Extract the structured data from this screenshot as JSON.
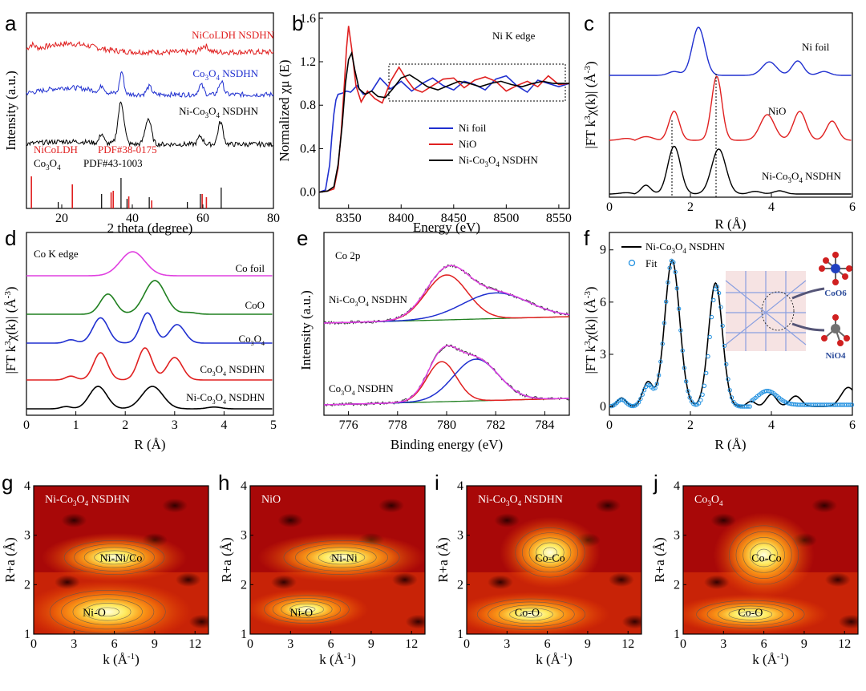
{
  "chart_data": [
    {
      "panel": "a",
      "type": "line",
      "xlabel": "2 theta (degree)",
      "ylabel": "Intensity (a.u.)",
      "xlim": [
        10,
        80
      ],
      "xticks": [
        20,
        40,
        60,
        80
      ],
      "series": [
        {
          "name": "NiCoLDH NSDHN",
          "color": "#e02020"
        },
        {
          "name": "Co3O4 NSDHN",
          "color": "#2030d0"
        },
        {
          "name": "Ni-Co3O4 NSDHN",
          "color": "#000000"
        }
      ],
      "references": [
        {
          "label": "NiCoLDH",
          "pdf": "PDF#38-0175",
          "color": "#e02020",
          "peaks": [
            11.4,
            23,
            34,
            34.6,
            39,
            45.5,
            59.8,
            61
          ]
        },
        {
          "label": "Co3O4",
          "pdf": "PDF#43-1003",
          "color": "#000000",
          "peaks": [
            19,
            31.3,
            36.8,
            38.5,
            44.8,
            55.6,
            59.3,
            65.2
          ]
        }
      ]
    },
    {
      "panel": "b",
      "type": "line",
      "title": "Ni K edge",
      "xlabel": "Energy (eV)",
      "ylabel": "Normalized χμ (E)",
      "xlim": [
        8322,
        8560
      ],
      "ylim": [
        -0.15,
        1.65
      ],
      "xticks": [
        8350,
        8400,
        8450,
        8500,
        8550
      ],
      "yticks": [
        "0.0",
        "0.4",
        "0.8",
        "1.2",
        "1.6"
      ],
      "series": [
        {
          "name": "Ni foil",
          "color": "#2030d0",
          "x": [
            8322,
            8328,
            8332,
            8334,
            8336,
            8338,
            8340,
            8344,
            8348,
            8352,
            8358,
            8364,
            8372,
            8380,
            8390,
            8400,
            8410,
            8420,
            8430,
            8440,
            8450,
            8460,
            8470,
            8480,
            8490,
            8500,
            8510,
            8520,
            8530,
            8540,
            8550,
            8560
          ],
          "y": [
            0.0,
            0.02,
            0.25,
            0.5,
            0.72,
            0.85,
            0.9,
            0.91,
            0.93,
            0.92,
            0.98,
            0.9,
            0.93,
            1.05,
            0.95,
            1.02,
            0.93,
            1.0,
            1.05,
            0.98,
            0.94,
            1.02,
            0.99,
            0.94,
            1.04,
            1.07,
            0.98,
            0.92,
            1.03,
            1.0,
            0.97,
            1.0
          ]
        },
        {
          "name": "NiO",
          "color": "#e02020",
          "x": [
            8322,
            8330,
            8336,
            8340,
            8343,
            8346,
            8348,
            8350,
            8353,
            8357,
            8362,
            8368,
            8375,
            8382,
            8390,
            8398,
            8405,
            8412,
            8420,
            8430,
            8440,
            8450,
            8460,
            8470,
            8480,
            8490,
            8500,
            8510,
            8520,
            8530,
            8540,
            8550,
            8560
          ],
          "y": [
            0.0,
            0.01,
            0.03,
            0.22,
            0.55,
            1.0,
            1.32,
            1.53,
            1.32,
            0.98,
            0.83,
            0.93,
            0.86,
            0.82,
            1.02,
            1.15,
            1.04,
            0.95,
            0.92,
            0.98,
            1.04,
            1.05,
            0.96,
            1.03,
            1.06,
            1.02,
            0.93,
            0.98,
            1.02,
            0.97,
            1.07,
            0.99,
            1.0
          ]
        },
        {
          "name": "Ni-Co3O4 NSDHN",
          "color": "#000000",
          "x": [
            8322,
            8330,
            8336,
            8340,
            8344,
            8347,
            8350,
            8353,
            8356,
            8360,
            8366,
            8372,
            8378,
            8385,
            8392,
            8400,
            8408,
            8416,
            8425,
            8435,
            8445,
            8455,
            8465,
            8475,
            8485,
            8495,
            8505,
            8515,
            8525,
            8535,
            8545,
            8560
          ],
          "y": [
            0.0,
            0.01,
            0.05,
            0.25,
            0.62,
            1.0,
            1.22,
            1.28,
            1.12,
            0.95,
            0.9,
            0.93,
            0.88,
            0.87,
            0.95,
            1.05,
            1.08,
            1.03,
            0.97,
            0.94,
            0.98,
            1.02,
            1.0,
            0.97,
            1.0,
            1.02,
            0.99,
            0.97,
            1.0,
            1.02,
            1.0,
            1.0
          ]
        }
      ]
    },
    {
      "panel": "c",
      "type": "line",
      "xlabel": "R (Å)",
      "ylabel": "|FT k³χ(k)| (Å⁻³)",
      "xlim": [
        0,
        6
      ],
      "xticks": [
        0,
        2,
        4,
        6
      ],
      "series": [
        {
          "name": "Ni foil",
          "color": "#2030d0"
        },
        {
          "name": "NiO",
          "color": "#e02020"
        },
        {
          "name": "Ni-Co3O4 NSDHN",
          "color": "#000000"
        }
      ],
      "dashed_lines_R": [
        1.6,
        2.65
      ]
    },
    {
      "panel": "d",
      "type": "line",
      "title": "Co K edge",
      "xlabel": "R (Å)",
      "ylabel": "|FT k³χ(k)| (Å⁻³)",
      "xlim": [
        0,
        5
      ],
      "xticks": [
        0,
        1,
        2,
        3,
        4,
        5
      ],
      "series": [
        {
          "name": "Co foil",
          "color": "#e040e0"
        },
        {
          "name": "CoO",
          "color": "#208020"
        },
        {
          "name": "Co3O4",
          "color": "#2030d0"
        },
        {
          "name": "Co3O4 NSDHN",
          "color": "#e02020"
        },
        {
          "name": "Ni-Co3O4 NSDHN",
          "color": "#000000"
        }
      ]
    },
    {
      "panel": "e",
      "type": "line",
      "title": "Co 2p",
      "xlabel": "Binding energy (eV)",
      "ylabel": "Intensity (a.u.)",
      "xlim": [
        775,
        785
      ],
      "xticks": [
        776,
        778,
        780,
        782,
        784
      ],
      "series": [
        {
          "name": "Ni-Co3O4 NSDHN"
        },
        {
          "name": "Co3O4 NSDHN"
        }
      ],
      "components": {
        "Ni-Co3O4 NSDHN": [
          780.0,
          782.0
        ],
        "Co3O4 NSDHN": [
          779.8,
          781.2
        ]
      }
    },
    {
      "panel": "f",
      "type": "line",
      "xlabel": "R (Å)",
      "ylabel": "|FT k³χ(k)| (Å⁻³)",
      "xlim": [
        0,
        6
      ],
      "ylim": [
        -0.5,
        10
      ],
      "xticks": [
        0,
        2,
        4,
        6
      ],
      "yticks": [
        0,
        3,
        6,
        9
      ],
      "series": [
        {
          "name": "Ni-Co3O4 NSDHN",
          "color": "#000000"
        },
        {
          "name": "Fit",
          "color": "#2090e0"
        }
      ],
      "inset_labels": [
        "CoO6",
        "NiO4"
      ]
    },
    {
      "panel": "g",
      "type": "heatmap",
      "title": "Ni-Co3O4 NSDHN",
      "xlabel": "k (Å⁻¹)",
      "ylabel": "R+a (Å)",
      "xlim": [
        0,
        13
      ],
      "ylim": [
        1,
        4
      ],
      "xticks": [
        0,
        3,
        6,
        9,
        12
      ],
      "yticks": [
        1,
        2,
        3,
        4
      ],
      "annotations": [
        "Ni-Ni/Co",
        "Ni-O"
      ]
    },
    {
      "panel": "h",
      "type": "heatmap",
      "title": "NiO",
      "xlabel": "k (Å⁻¹)",
      "ylabel": "R+a (Å)",
      "xlim": [
        0,
        13
      ],
      "ylim": [
        1,
        4
      ],
      "xticks": [
        0,
        3,
        6,
        9,
        12
      ],
      "yticks": [
        1,
        2,
        3,
        4
      ],
      "annotations": [
        "Ni-Ni",
        "Ni-O"
      ]
    },
    {
      "panel": "i",
      "type": "heatmap",
      "title": "Ni-Co3O4 NSDHN",
      "xlabel": "k (Å⁻¹)",
      "ylabel": "R+a (Å)",
      "xlim": [
        0,
        13
      ],
      "ylim": [
        1,
        4
      ],
      "xticks": [
        0,
        3,
        6,
        9,
        12
      ],
      "yticks": [
        1,
        2,
        3,
        4
      ],
      "annotations": [
        "Co-Co",
        "Co-O"
      ]
    },
    {
      "panel": "j",
      "type": "heatmap",
      "title": "Co3O4",
      "xlabel": "k (Å⁻¹)",
      "ylabel": "R+a (Å)",
      "xlim": [
        0,
        13
      ],
      "ylim": [
        1,
        4
      ],
      "xticks": [
        0,
        3,
        6,
        9,
        12
      ],
      "yticks": [
        1,
        2,
        3,
        4
      ],
      "annotations": [
        "Co-Co",
        "Co-O"
      ]
    }
  ],
  "labels": {
    "a": "a",
    "b": "b",
    "c": "c",
    "d": "d",
    "e": "e",
    "f": "f",
    "g": "g",
    "h": "h",
    "i": "i",
    "j": "j",
    "a_s1": "NiCoLDH NSDHN",
    "a_s2a": "Co",
    "a_s2b": "3",
    "a_s2c": "O",
    "a_s2d": "4",
    "a_s2e": " NSDHN",
    "a_s3a": "Ni-Co",
    "a_s3b": "3",
    "a_s3c": "O",
    "a_s3d": "4",
    "a_s3e": " NSDHN",
    "a_ref1": "NiCoLDH",
    "a_ref1pdf": "PDF#38-0175",
    "a_ref2a": "Co",
    "a_ref2b": "3",
    "a_ref2c": "O",
    "a_ref2d": "4",
    "a_ref2pdf": "PDF#43-1003",
    "a_ylabel": "Intensity (a.u.)",
    "a_xlabel": "2 theta (degree)",
    "b_title": "Ni K edge",
    "b_ylabel": "Normalized χμ (E)",
    "b_xlabel": "Energy (eV)",
    "b_l1": "Ni foil",
    "b_l2": "NiO",
    "b_l3a": "Ni-Co",
    "b_l3b": "3",
    "b_l3c": "O",
    "b_l3d": "4",
    "b_l3e": " NSDHN",
    "c_l1": "Ni foil",
    "c_l2": "NiO",
    "c_l3a": "Ni-Co",
    "c_l3b": "3",
    "c_l3c": "O",
    "c_l3d": "4",
    "c_l3e": " NSDHN",
    "c_ylabel_a": "|FT k",
    "c_ylabel_b": "3",
    "c_ylabel_c": "χ(k)| (Å",
    "c_ylabel_d": "-3",
    "c_ylabel_e": ")",
    "R_label": "R (Å)",
    "d_title": "Co K edge",
    "d_l1": "Co foil",
    "d_l2": "CoO",
    "d_l3a": "Co",
    "d_l3b": "3",
    "d_l3c": "O",
    "d_l3d": "4",
    "d_l4a": "Co",
    "d_l4b": "3",
    "d_l4c": "O",
    "d_l4d": "4",
    "d_l4e": " NSDHN",
    "d_l5a": "Ni-Co",
    "d_l5b": "3",
    "d_l5c": "O",
    "d_l5d": "4",
    "d_l5e": " NSDHN",
    "e_title": "Co 2p",
    "e_ylabel": "Intensity (a.u.)",
    "e_xlabel": "Binding energy (eV)",
    "e_s1a": "Ni-Co",
    "e_s1b": "3",
    "e_s1c": "O",
    "e_s1d": "4",
    "e_s1e": " NSDHN",
    "e_s2a": "Co",
    "e_s2b": "3",
    "e_s2c": "O",
    "e_s2d": "4",
    "e_s2e": " NSDHN",
    "f_l1a": "Ni-Co",
    "f_l1b": "3",
    "f_l1c": "O",
    "f_l1d": "4",
    "f_l1e": " NSDHN",
    "f_l2": "Fit",
    "f_co": "CoO6",
    "f_ni": "NiO4",
    "k_a": "k (Å",
    "k_b": "-1",
    "k_c": ")",
    "ra": "R+a (Å)",
    "g_ta": "Ni-Co",
    "g_tb": "3",
    "g_tc": "O",
    "g_td": "4",
    "g_te": " NSDHN",
    "g_a1": "Ni-Ni/Co",
    "g_a2": "Ni-O",
    "h_t": "NiO",
    "h_a1": "Ni-Ni",
    "h_a2": "Ni-O",
    "i_ta": "Ni-Co",
    "i_tb": "3",
    "i_tc": "O",
    "i_td": "4",
    "i_te": " NSDHN",
    "i_a1": "Co-Co",
    "i_a2": "Co-O",
    "j_ta": "Co",
    "j_tb": "3",
    "j_tc": "O",
    "j_td": "4",
    "j_a1": "Co-Co",
    "j_a2": "Co-O"
  }
}
